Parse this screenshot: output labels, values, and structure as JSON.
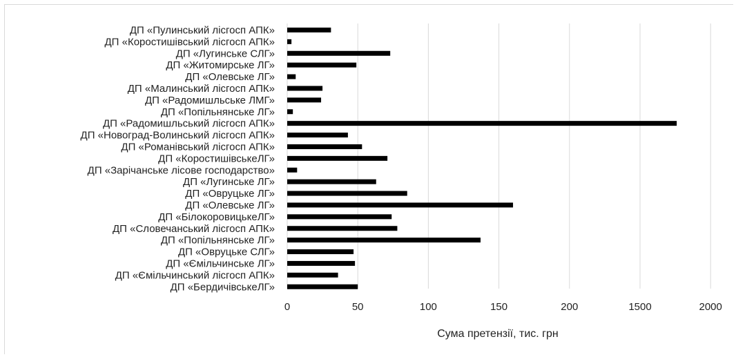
{
  "chart_data": {
    "type": "bar",
    "orientation": "horizontal",
    "xlabel": "Сума претензії, тис. грн",
    "ylabel": "",
    "title": "",
    "grid": true,
    "legend": "none",
    "bar_color": "#000000",
    "grid_color": "#d9d9d9",
    "x_ticks": [
      "0",
      "50",
      "100",
      "150",
      "200",
      "1500",
      "2000"
    ],
    "x_scale_note": "broken axis: positions 0-200 in steps of 50, then 1500 and 2000 at equal spacing",
    "categories": [
      "ДП «Пулинський лісгосп АПК»",
      "ДП «Коростишівський лісгосп АПК»",
      "ДП «Лугинське СЛГ»",
      "ДП «Житомирське ЛГ»",
      "ДП «Олевське ЛГ»",
      "ДП «Малинський лісгосп АПК»",
      "ДП «Радомишльське ЛМГ»",
      "ДП «Попільнянське ЛГ»",
      "ДП «Радомишльський лісгосп АПК»",
      "ДП «Новоград-Волинський лісгосп АПК»",
      "ДП «Романівський лісгосп АПК»",
      "ДП «КоростишівськеЛГ»",
      "ДП «Зарічанське лісове господарство»",
      "ДП «Лугинське ЛГ»",
      "ДП «Овруцьке ЛГ»",
      "ДП «Олевське ЛГ»",
      "ДП «БілокоровицькеЛГ»",
      "ДП «Словечанський лісгосп АПК»",
      "ДП «Попільнянське ЛГ»",
      "ДП «Овруцьке СЛГ»",
      "ДП «Ємільчинське ЛГ»",
      "ДП «Ємільчинський лісгосп АПК»",
      "ДП «БердичівськеЛГ»"
    ],
    "values": [
      31,
      3,
      73,
      49,
      6,
      25,
      24,
      4,
      1760,
      43,
      53,
      71,
      7,
      63,
      85,
      160,
      74,
      78,
      137,
      47,
      48,
      36,
      50
    ]
  }
}
